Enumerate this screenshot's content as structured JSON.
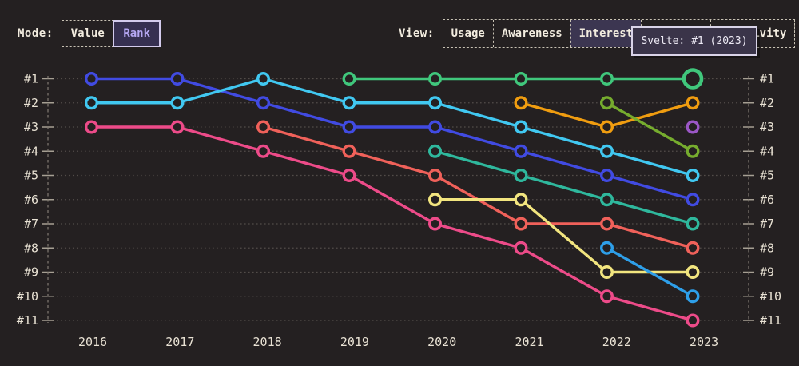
{
  "header": {
    "mode": {
      "label": "Mode:",
      "options": [
        {
          "label": "Value",
          "active": false
        },
        {
          "label": "Rank",
          "active": true
        }
      ]
    },
    "view": {
      "label": "View:",
      "options": [
        {
          "label": "Usage",
          "active": false
        },
        {
          "label": "Awareness",
          "active": false
        },
        {
          "label": "Interest",
          "active": true
        },
        {
          "label": "",
          "active": false
        },
        {
          "label": "Positivity",
          "active": false
        }
      ]
    }
  },
  "tooltip": {
    "text": "Svelte: #1 (2023)"
  },
  "colors": {
    "background": "#242021",
    "axis_text": "#e9e2d4",
    "accent_purple": "#b5a7f2",
    "tooltip_bg": "#3a3449",
    "tooltip_border": "#d9d3e8"
  },
  "chart_data": {
    "type": "line",
    "variant": "bump-rank-chart",
    "x": [
      2016,
      2017,
      2018,
      2019,
      2020,
      2021,
      2022,
      2023
    ],
    "y_axis": {
      "labels": [
        "#1",
        "#2",
        "#3",
        "#4",
        "#5",
        "#6",
        "#7",
        "#8",
        "#9",
        "#10",
        "#11"
      ],
      "min": 1,
      "max": 11,
      "inverted": true,
      "grid": "dotted",
      "labels_on_both_sides": true
    },
    "series": [
      {
        "name": "blue",
        "color": "#414be2",
        "ranks": [
          1,
          1,
          2,
          3,
          3,
          4,
          5,
          6
        ]
      },
      {
        "name": "cyan",
        "color": "#41c8f1",
        "ranks": [
          2,
          2,
          1,
          2,
          2,
          3,
          4,
          5
        ]
      },
      {
        "name": "pink",
        "color": "#ed4b89",
        "ranks": [
          3,
          3,
          4,
          5,
          7,
          8,
          10,
          11
        ]
      },
      {
        "name": "salmon",
        "color": "#f0615a",
        "ranks": [
          null,
          null,
          3,
          4,
          5,
          7,
          7,
          8
        ]
      },
      {
        "name": "teal",
        "color": "#2fb89d",
        "ranks": [
          null,
          null,
          null,
          null,
          4,
          5,
          6,
          7
        ]
      },
      {
        "name": "yellow",
        "color": "#f2e57f",
        "ranks": [
          null,
          null,
          null,
          null,
          6,
          6,
          9,
          9
        ]
      },
      {
        "name": "orange",
        "color": "#f09d10",
        "ranks": [
          null,
          null,
          null,
          null,
          null,
          2,
          3,
          2
        ]
      },
      {
        "name": "olive",
        "color": "#76ac2e",
        "ranks": [
          null,
          null,
          null,
          null,
          null,
          null,
          2,
          4
        ]
      },
      {
        "name": "sky-blue",
        "color": "#2e9fe9",
        "ranks": [
          null,
          null,
          null,
          null,
          null,
          null,
          8,
          10
        ]
      },
      {
        "name": "purple",
        "color": "#9b57c6",
        "ranks": [
          null,
          null,
          null,
          null,
          null,
          null,
          null,
          3
        ]
      },
      {
        "name": "Svelte",
        "color": "#40c77c",
        "ranks": [
          null,
          null,
          null,
          1,
          1,
          1,
          1,
          1
        ],
        "highlight_year": 2023
      }
    ],
    "highlight": {
      "series": "Svelte",
      "year": 2023,
      "rank": 1
    }
  }
}
